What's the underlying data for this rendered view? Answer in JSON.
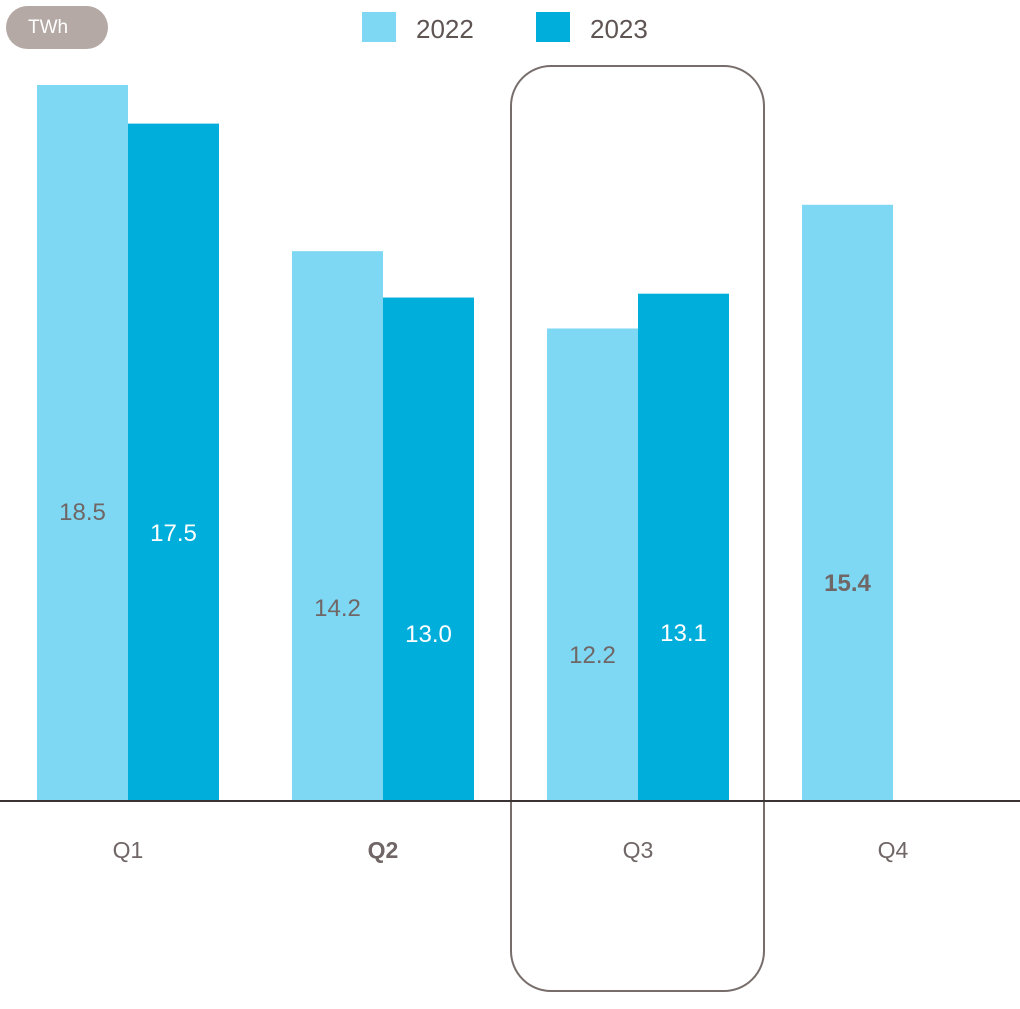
{
  "chart_data": {
    "type": "bar",
    "unit": "TWh",
    "categories": [
      "Q1",
      "Q2",
      "Q3",
      "Q4"
    ],
    "emphasized_category": "Q2",
    "highlighted_category": "Q3",
    "series": [
      {
        "name": "2022",
        "color": "#7fd8f3",
        "values": [
          18.5,
          14.2,
          12.2,
          15.4
        ],
        "label_color": "#6f6665"
      },
      {
        "name": "2023",
        "color": "#00aedb",
        "values": [
          17.5,
          13.0,
          13.1,
          null
        ],
        "label_color": "#ffffff"
      }
    ],
    "bold_labels": [
      "Q4-2022"
    ],
    "grid": false,
    "legend_position": "top-center"
  }
}
